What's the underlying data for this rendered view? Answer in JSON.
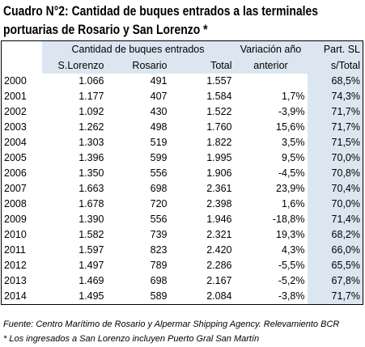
{
  "header": {
    "title_line1": "Cuadro N°2: Cantidad de buques entrados a las terminales",
    "title_line2": "portuarias de Rosario y San Lorenzo *"
  },
  "table": {
    "group_header": "Cantidad de buques entrados",
    "variation_header": "Variación año",
    "variation_header2": "anterior",
    "part_header": "Part. SL",
    "part_header2": "s/Total",
    "columns": [
      "S.Lorenzo",
      "Rosario",
      "Total"
    ],
    "rows": [
      [
        "2000",
        "1.066",
        "491",
        "1.557",
        null,
        "68,5%"
      ],
      [
        "2001",
        "1.177",
        "407",
        "1.584",
        "1,7%",
        "74,3%"
      ],
      [
        "2002",
        "1.092",
        "430",
        "1.522",
        "-3,9%",
        "71,7%"
      ],
      [
        "2003",
        "1.262",
        "498",
        "1.760",
        "15,6%",
        "71,7%"
      ],
      [
        "2004",
        "1.303",
        "519",
        "1.822",
        "3,5%",
        "71,5%"
      ],
      [
        "2005",
        "1.396",
        "599",
        "1.995",
        "9,5%",
        "70,0%"
      ],
      [
        "2006",
        "1.350",
        "556",
        "1.906",
        "-4,5%",
        "70,8%"
      ],
      [
        "2007",
        "1.663",
        "698",
        "2.361",
        "23,9%",
        "70,4%"
      ],
      [
        "2008",
        "1.678",
        "720",
        "2.398",
        "1,6%",
        "70,0%"
      ],
      [
        "2009",
        "1.390",
        "556",
        "1.946",
        "-18,8%",
        "71,4%"
      ],
      [
        "2010",
        "1.582",
        "739",
        "2.321",
        "19,3%",
        "68,2%"
      ],
      [
        "2011",
        "1.597",
        "823",
        "2.420",
        "4,3%",
        "66,0%"
      ],
      [
        "2012",
        "1.497",
        "789",
        "2.286",
        "-5,5%",
        "65,5%"
      ],
      [
        "2013",
        "1.469",
        "698",
        "2.167",
        "-5,2%",
        "67,8%"
      ],
      [
        "2014",
        "1.495",
        "589",
        "2.084",
        "-3,8%",
        "71,7%"
      ]
    ]
  },
  "footer": {
    "source": "Fuente: Centro Marítimo de Rosario y Alpermar Shipping Agency. Relevamiento BCR",
    "note": "* Los ingresados a San Lorenzo incluyen Puerto Gral San Martín"
  }
}
